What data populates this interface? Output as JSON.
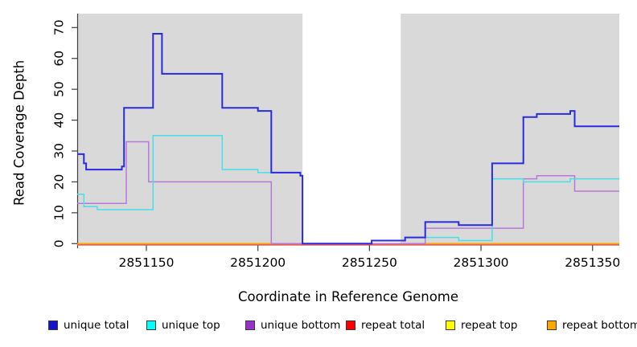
{
  "chart_data": {
    "type": "line",
    "subtype": "step-coverage-plot",
    "title": "",
    "xlabel": "Coordinate in Reference Genome",
    "ylabel": "Read Coverage Depth",
    "xlim": [
      2851119,
      2851362
    ],
    "ylim": [
      0,
      70
    ],
    "grid": false,
    "legend_position": "bottom",
    "plot_bg": "#ffffff",
    "shading_color": "#d9d9d9",
    "axis_color": "#3f3f3f",
    "x_tick_values": [
      2851150,
      2851200,
      2851250,
      2851300,
      2851350
    ],
    "x_tick_labels": [
      "2851150",
      "2851200",
      "2851250",
      "2851300",
      "2851350"
    ],
    "y_tick_values": [
      0,
      10,
      20,
      30,
      40,
      50,
      60,
      70
    ],
    "y_tick_labels": [
      "0",
      "10",
      "20",
      "30",
      "40",
      "50",
      "60",
      "70"
    ],
    "shaded_regions": [
      {
        "from": 2851119,
        "to": 2851220
      },
      {
        "from": 2851264,
        "to": 2851362
      }
    ],
    "series": [
      {
        "name": "unique total",
        "color": "#2a2ae0",
        "steps": [
          [
            2851119,
            29
          ],
          [
            2851122,
            26
          ],
          [
            2851123,
            24
          ],
          [
            2851139,
            25
          ],
          [
            2851140,
            44
          ],
          [
            2851153,
            68
          ],
          [
            2851157,
            55
          ],
          [
            2851184,
            44
          ],
          [
            2851200,
            43
          ],
          [
            2851206,
            23
          ],
          [
            2851219,
            22
          ],
          [
            2851220,
            0
          ],
          [
            2851251,
            1
          ],
          [
            2851266,
            2
          ],
          [
            2851275,
            7
          ],
          [
            2851290,
            6
          ],
          [
            2851305,
            26
          ],
          [
            2851319,
            41
          ],
          [
            2851325,
            42
          ],
          [
            2851340,
            43
          ],
          [
            2851342,
            38
          ],
          [
            2851362,
            38
          ]
        ]
      },
      {
        "name": "unique top",
        "color": "#45e0e8",
        "steps": [
          [
            2851119,
            16
          ],
          [
            2851122,
            12
          ],
          [
            2851128,
            11
          ],
          [
            2851153,
            35
          ],
          [
            2851184,
            24
          ],
          [
            2851200,
            23
          ],
          [
            2851219,
            22
          ],
          [
            2851220,
            0
          ],
          [
            2851251,
            1
          ],
          [
            2851266,
            2
          ],
          [
            2851290,
            1
          ],
          [
            2851305,
            21
          ],
          [
            2851319,
            20
          ],
          [
            2851340,
            21
          ],
          [
            2851362,
            21
          ]
        ]
      },
      {
        "name": "unique bottom",
        "color": "#b878d8",
        "steps": [
          [
            2851119,
            13
          ],
          [
            2851141,
            33
          ],
          [
            2851151,
            20
          ],
          [
            2851206,
            0
          ],
          [
            2851275,
            5
          ],
          [
            2851319,
            21
          ],
          [
            2851325,
            22
          ],
          [
            2851342,
            17
          ],
          [
            2851362,
            17
          ]
        ]
      },
      {
        "name": "repeat total",
        "color": "#e04858",
        "steps": [
          [
            2851119,
            0
          ],
          [
            2851362,
            0
          ]
        ]
      },
      {
        "name": "repeat top",
        "color": "#ffff00",
        "steps": [
          [
            2851119,
            0
          ],
          [
            2851362,
            0
          ]
        ]
      },
      {
        "name": "repeat bottom",
        "color": "#ffa500",
        "steps": [
          [
            2851119,
            0
          ],
          [
            2851362,
            0
          ]
        ]
      }
    ],
    "legend": [
      {
        "label": "unique total",
        "color": "#1414cc"
      },
      {
        "label": "unique top",
        "color": "#00ffff"
      },
      {
        "label": "unique bottom",
        "color": "#9932cc"
      },
      {
        "label": "repeat total",
        "color": "#ff0000"
      },
      {
        "label": "repeat top",
        "color": "#ffff00"
      },
      {
        "label": "repeat bottom",
        "color": "#ffa500"
      }
    ]
  }
}
